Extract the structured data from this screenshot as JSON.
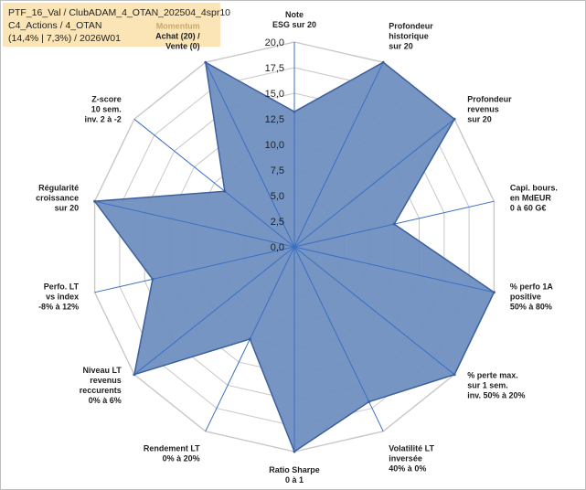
{
  "info": {
    "line1": "PTF_16_Val / ClubADAM_4_OTAN_202504_4spr10",
    "line2": "C4_Actions / 4_OTAN",
    "line3": "(14,4% | 7,3%) / 2026W01"
  },
  "colors": {
    "fill": "#6f8fc0",
    "stroke": "#3d5f9d",
    "grid": "#c8c8c8",
    "spoke": "#3a6fc4",
    "info_bg": "#fbe5b6",
    "accent_label": "#c9a86a"
  },
  "chart_data": {
    "type": "radar",
    "rmin": 0,
    "rmax": 20,
    "tick_labels": [
      "0,0",
      "2,5",
      "5,0",
      "7,5",
      "10,0",
      "12,5",
      "15,0",
      "17,5",
      "20,0"
    ],
    "axes": [
      {
        "label": [
          "Note",
          "ESG sur 20"
        ],
        "value": 13.2
      },
      {
        "label": [
          "Profondeur",
          "historique",
          "sur 20"
        ],
        "value": 20
      },
      {
        "label": [
          "Profondeur",
          "revenus",
          "sur 20"
        ],
        "value": 20
      },
      {
        "label": [
          "Capi. bours.",
          "en MdEUR",
          "0 à 60 G€"
        ],
        "value": 10
      },
      {
        "label": [
          "% perfo 1A",
          "positive",
          "50% à 80%"
        ],
        "value": 20
      },
      {
        "label": [
          "% perte max.",
          "sur 1 sem.",
          "inv. 50% à 20%"
        ],
        "value": 20
      },
      {
        "label": [
          "Volatilité LT",
          "inversée",
          "40% à 0%"
        ],
        "value": 16.8
      },
      {
        "label": [
          "Ratio Sharpe",
          "0 à 1"
        ],
        "value": 20
      },
      {
        "label": [
          "Rendement LT",
          "0% à 20%"
        ],
        "value": 10
      },
      {
        "label": [
          "Niveau LT",
          "revenus",
          "reccurents",
          "0% à 6%"
        ],
        "value": 20
      },
      {
        "label": [
          "Perfo. LT",
          "vs index",
          "-8% à 12%"
        ],
        "value": 14.2
      },
      {
        "label": [
          "Régularité",
          "croissance",
          "sur 20"
        ],
        "value": 20
      },
      {
        "label": [
          "Z-score",
          "10 sem.",
          "inv. 2 à -2"
        ],
        "value": 8.7
      },
      {
        "label": [
          "Momentum",
          "Achat (20) /",
          "Vente (0)"
        ],
        "value": 20,
        "accent_first_line": true
      }
    ]
  }
}
